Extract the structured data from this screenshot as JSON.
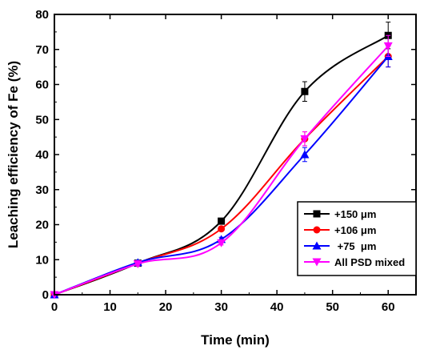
{
  "chart_data": {
    "type": "line",
    "xlabel": "Time (min)",
    "ylabel": "Leaching efficiency of Fe (%)",
    "xlim": [
      0,
      65
    ],
    "ylim": [
      0,
      80
    ],
    "xticks": [
      0,
      10,
      20,
      30,
      40,
      50,
      60
    ],
    "yticks": [
      0,
      10,
      20,
      30,
      40,
      50,
      60,
      70,
      80
    ],
    "grid": false,
    "legend_position": "bottom-right",
    "x": [
      0,
      15,
      30,
      45,
      60
    ],
    "series": [
      {
        "name": "+150 μm",
        "color": "#000000",
        "marker": "square",
        "values": [
          0,
          9,
          21,
          58,
          74
        ],
        "errors": [
          0,
          0.6,
          0.6,
          2.8,
          3.8
        ]
      },
      {
        "name": "+106 μm",
        "color": "#ff0000",
        "marker": "circle",
        "values": [
          0,
          9,
          18.8,
          44.5,
          68
        ],
        "errors": [
          0,
          0.5,
          0.6,
          2,
          3
        ]
      },
      {
        "name": " +75  μm",
        "color": "#0000ff",
        "marker": "triangle-up",
        "values": [
          0,
          9.2,
          15.8,
          40,
          68
        ],
        "errors": [
          0,
          0.6,
          0.6,
          2,
          3
        ]
      },
      {
        "name": "All PSD mixed",
        "color": "#ff00ff",
        "marker": "triangle-down",
        "values": [
          0,
          8.8,
          14.8,
          44.5,
          71
        ],
        "errors": [
          0,
          0.6,
          0.6,
          2,
          3
        ]
      }
    ]
  }
}
